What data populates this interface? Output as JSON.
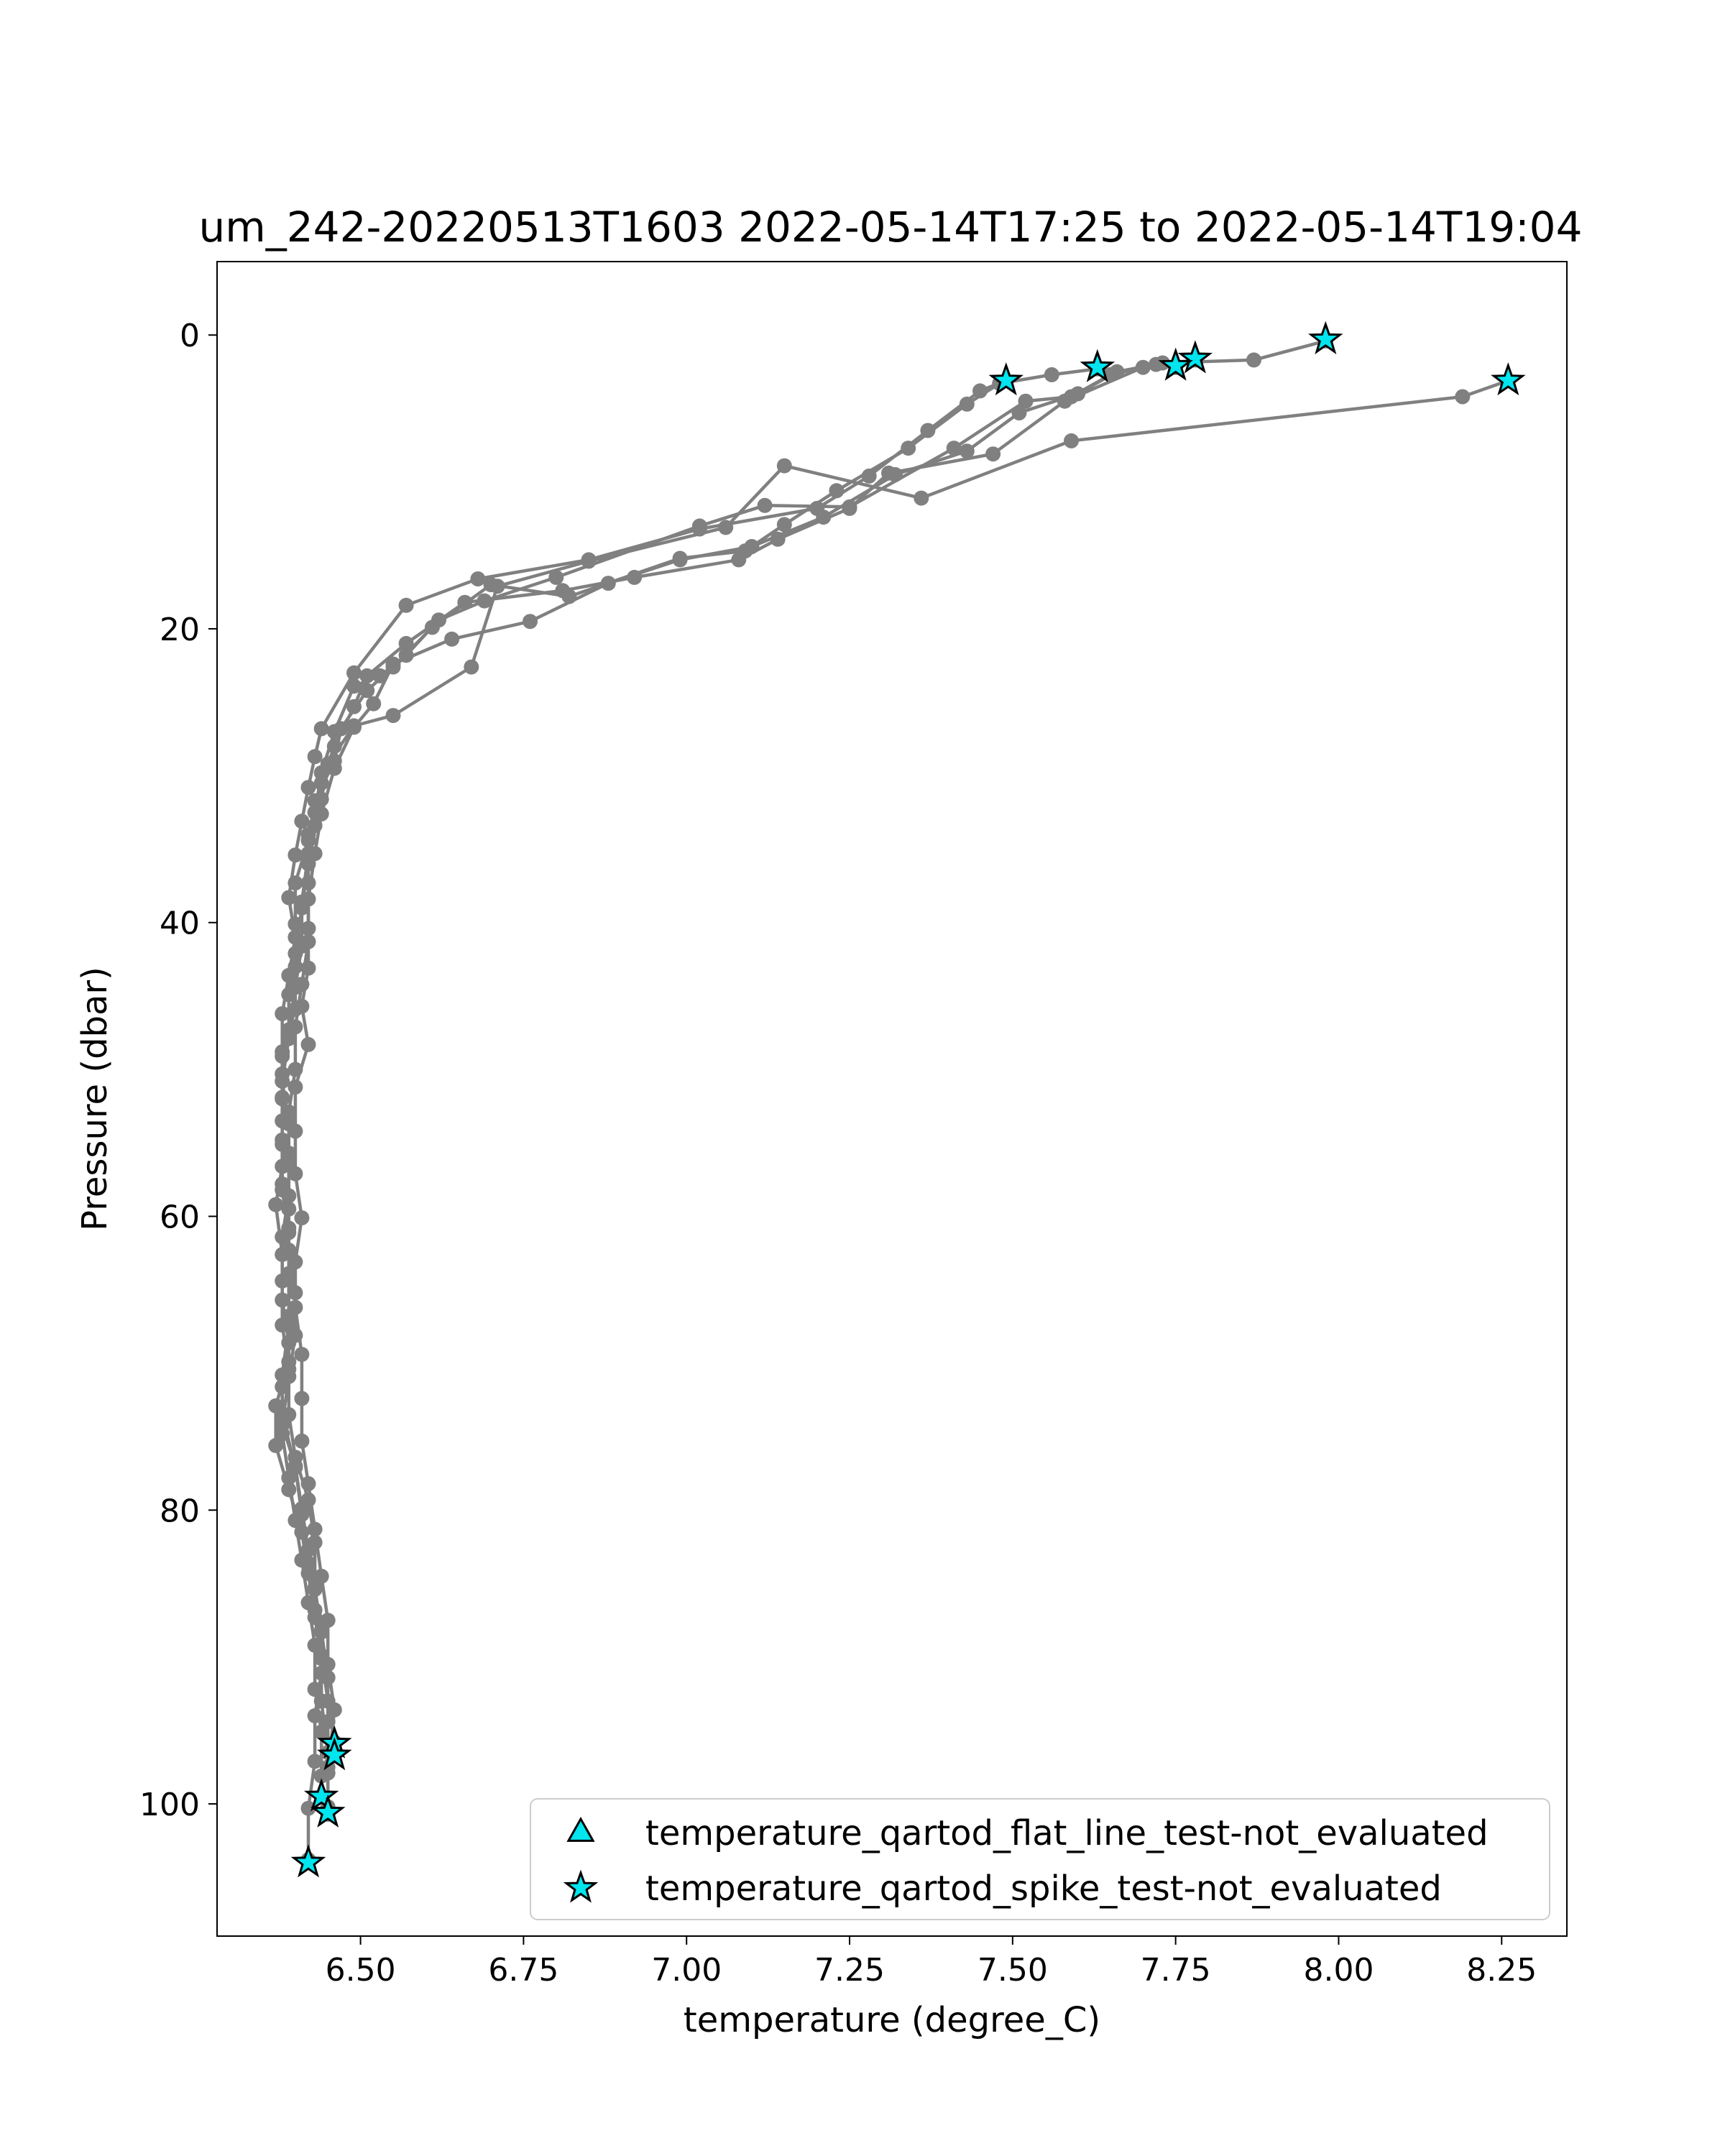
{
  "chart_data": {
    "type": "line",
    "title": "um_242-20220513T1603 2022-05-14T17:25 to 2022-05-14T19:04",
    "xlabel": "temperature (degree_C)",
    "ylabel": "Pressure (dbar)",
    "xlim": [
      6.28,
      8.35
    ],
    "ylim": [
      109,
      -5
    ],
    "y_inverted": true,
    "grid": false,
    "legend_position": "lower-right",
    "x_ticks": [
      6.5,
      6.75,
      7.0,
      7.25,
      7.5,
      7.75,
      8.0,
      8.25
    ],
    "x_tick_labels": [
      "6.50",
      "6.75",
      "7.00",
      "7.25",
      "7.50",
      "7.75",
      "8.00",
      "8.25"
    ],
    "y_ticks": [
      0,
      20,
      40,
      60,
      80,
      100
    ],
    "y_tick_labels": [
      "0",
      "20",
      "40",
      "60",
      "80",
      "100"
    ],
    "colors": {
      "profile": "#808080",
      "flag_fill": "#00e5ee",
      "flag_edge": "#000000"
    },
    "legend": [
      {
        "label": "temperature_qartod_flat_line_test-not_evaluated",
        "marker": "triangle"
      },
      {
        "label": "temperature_qartod_spike_test-not_evaluated",
        "marker": "star"
      }
    ],
    "series": [
      {
        "color": "#808080",
        "marker": "circle",
        "points": [
          [
            7.49,
            3.1
          ],
          [
            7.45,
            3.8
          ],
          [
            7.37,
            6.5
          ],
          [
            7.28,
            9.6
          ],
          [
            7.2,
            11.8
          ],
          [
            7.02,
            13.2
          ],
          [
            6.85,
            15.3
          ],
          [
            6.68,
            16.6
          ],
          [
            6.57,
            18.4
          ],
          [
            6.49,
            23.0
          ],
          [
            6.44,
            26.8
          ],
          [
            6.43,
            28.7
          ],
          [
            6.42,
            30.8
          ],
          [
            6.41,
            33.1
          ],
          [
            6.4,
            35.4
          ],
          [
            6.39,
            38.3
          ],
          [
            6.4,
            41.0
          ],
          [
            6.39,
            43.6
          ],
          [
            6.38,
            46.2
          ],
          [
            6.38,
            49.1
          ],
          [
            6.38,
            52.0
          ],
          [
            6.38,
            55.1
          ],
          [
            6.38,
            58.2
          ],
          [
            6.39,
            61.1
          ],
          [
            6.39,
            64.3
          ],
          [
            6.39,
            67.4
          ],
          [
            6.38,
            70.8
          ],
          [
            6.38,
            73.5
          ],
          [
            6.4,
            77.1
          ],
          [
            6.41,
            80.3
          ],
          [
            6.42,
            83.6
          ],
          [
            6.43,
            86.8
          ],
          [
            6.44,
            89.9
          ],
          [
            6.45,
            93.0
          ],
          [
            6.46,
            95.8
          ]
        ]
      },
      {
        "color": "#808080",
        "marker": "circle",
        "points": [
          [
            7.63,
            2.3
          ],
          [
            7.56,
            2.7
          ],
          [
            7.48,
            3.3
          ],
          [
            7.43,
            4.7
          ],
          [
            7.34,
            7.7
          ],
          [
            7.23,
            10.6
          ],
          [
            7.15,
            12.9
          ],
          [
            7.09,
            14.7
          ],
          [
            6.99,
            15.2
          ],
          [
            6.82,
            17.8
          ],
          [
            6.7,
            17.0
          ],
          [
            6.61,
            19.9
          ],
          [
            6.55,
            22.6
          ],
          [
            6.51,
            24.2
          ],
          [
            6.47,
            26.8
          ],
          [
            6.46,
            29.0
          ],
          [
            6.43,
            31.7
          ],
          [
            6.42,
            34.4
          ],
          [
            6.4,
            37.3
          ],
          [
            6.4,
            40.1
          ],
          [
            6.4,
            43.0
          ],
          [
            6.4,
            45.9
          ],
          [
            6.38,
            48.8
          ],
          [
            6.38,
            51.9
          ],
          [
            6.38,
            54.8
          ],
          [
            6.38,
            57.8
          ],
          [
            6.39,
            60.8
          ],
          [
            6.39,
            63.9
          ],
          [
            6.39,
            66.8
          ],
          [
            6.39,
            69.9
          ],
          [
            6.37,
            72.9
          ],
          [
            6.37,
            75.6
          ],
          [
            6.39,
            78.6
          ],
          [
            6.41,
            81.5
          ],
          [
            6.42,
            84.3
          ],
          [
            6.43,
            87.3
          ],
          [
            6.44,
            90.1
          ],
          [
            6.44,
            93.0
          ],
          [
            6.45,
            96.5
          ]
        ]
      },
      {
        "color": "#808080",
        "marker": "circle",
        "points": [
          [
            7.75,
            2.2
          ],
          [
            7.72,
            2.0
          ],
          [
            7.65,
            2.7
          ],
          [
            7.59,
            4.2
          ],
          [
            7.52,
            4.5
          ],
          [
            7.41,
            7.7
          ],
          [
            7.25,
            11.7
          ],
          [
            7.12,
            11.6
          ],
          [
            7.02,
            13.0
          ],
          [
            6.8,
            16.5
          ],
          [
            6.69,
            18.1
          ],
          [
            6.62,
            19.4
          ],
          [
            6.57,
            21.8
          ],
          [
            6.53,
            23.2
          ],
          [
            6.49,
            23.9
          ],
          [
            6.46,
            27.0
          ],
          [
            6.44,
            29.8
          ],
          [
            6.43,
            32.5
          ],
          [
            6.42,
            35.3
          ],
          [
            6.41,
            38.6
          ],
          [
            6.41,
            41.6
          ],
          [
            6.4,
            44.4
          ],
          [
            6.39,
            47.3
          ],
          [
            6.38,
            50.3
          ],
          [
            6.38,
            53.5
          ],
          [
            6.38,
            56.6
          ],
          [
            6.37,
            59.2
          ],
          [
            6.38,
            62.6
          ],
          [
            6.38,
            65.7
          ],
          [
            6.39,
            68.6
          ],
          [
            6.38,
            71.6
          ],
          [
            6.38,
            74.8
          ],
          [
            6.39,
            77.8
          ],
          [
            6.4,
            80.7
          ],
          [
            6.41,
            83.4
          ],
          [
            6.42,
            86.3
          ],
          [
            6.43,
            89.2
          ],
          [
            6.43,
            92.2
          ],
          [
            6.44,
            95.1
          ],
          [
            6.44,
            98.1
          ],
          [
            6.44,
            99.5
          ]
        ]
      },
      {
        "color": "#808080",
        "marker": "circle",
        "points": [
          [
            7.78,
            1.7
          ],
          [
            7.7,
            2.2
          ],
          [
            7.58,
            4.5
          ],
          [
            7.47,
            8.1
          ],
          [
            7.31,
            9.4
          ],
          [
            7.25,
            11.8
          ],
          [
            7.14,
            13.9
          ],
          [
            7.08,
            15.3
          ],
          [
            6.92,
            16.5
          ],
          [
            6.81,
            17.4
          ],
          [
            6.66,
            18.2
          ],
          [
            6.57,
            21.0
          ],
          [
            6.51,
            23.2
          ],
          [
            6.49,
            25.3
          ],
          [
            6.46,
            28.0
          ],
          [
            6.44,
            30.5
          ],
          [
            6.43,
            33.4
          ],
          [
            6.42,
            36.0
          ],
          [
            6.41,
            39.0
          ],
          [
            6.4,
            42.1
          ],
          [
            6.39,
            44.9
          ],
          [
            6.39,
            47.9
          ],
          [
            6.38,
            50.8
          ],
          [
            6.39,
            53.7
          ],
          [
            6.39,
            56.5
          ],
          [
            6.39,
            59.5
          ],
          [
            6.39,
            62.3
          ],
          [
            6.4,
            65.2
          ],
          [
            6.4,
            68.1
          ],
          [
            6.39,
            70.9
          ],
          [
            6.38,
            74.2
          ],
          [
            6.4,
            77.0
          ],
          [
            6.41,
            79.9
          ],
          [
            6.42,
            82.7
          ],
          [
            6.43,
            85.4
          ],
          [
            6.44,
            88.2
          ],
          [
            6.45,
            91.4
          ],
          [
            6.45,
            94.4
          ],
          [
            6.45,
            97.5
          ],
          [
            6.45,
            100.7
          ]
        ]
      },
      {
        "color": "#808080",
        "marker": "circle",
        "points": [
          [
            7.98,
            0.4
          ],
          [
            7.87,
            1.7
          ],
          [
            7.73,
            1.9
          ],
          [
            7.66,
            2.5
          ],
          [
            7.6,
            4.0
          ],
          [
            7.51,
            5.3
          ],
          [
            7.43,
            7.9
          ],
          [
            7.32,
            9.5
          ],
          [
            7.21,
            12.4
          ],
          [
            7.1,
            14.4
          ],
          [
            6.99,
            15.3
          ],
          [
            6.88,
            16.9
          ],
          [
            6.76,
            19.5
          ],
          [
            6.64,
            20.7
          ],
          [
            6.55,
            22.4
          ],
          [
            6.52,
            25.1
          ],
          [
            6.49,
            26.7
          ],
          [
            6.46,
            29.5
          ],
          [
            6.44,
            32.6
          ],
          [
            6.43,
            35.3
          ],
          [
            6.42,
            38.4
          ],
          [
            6.42,
            41.3
          ],
          [
            6.41,
            44.2
          ],
          [
            6.4,
            47.1
          ],
          [
            6.4,
            50.0
          ],
          [
            6.39,
            52.9
          ],
          [
            6.39,
            55.7
          ],
          [
            6.39,
            58.6
          ],
          [
            6.38,
            61.4
          ],
          [
            6.38,
            64.4
          ],
          [
            6.38,
            67.4
          ],
          [
            6.39,
            70.4
          ],
          [
            6.39,
            73.5
          ],
          [
            6.4,
            76.4
          ],
          [
            6.42,
            79.3
          ],
          [
            6.43,
            82.2
          ],
          [
            6.43,
            85.3
          ],
          [
            6.44,
            88.3
          ],
          [
            6.44,
            91.1
          ],
          [
            6.43,
            94.0
          ],
          [
            6.43,
            97.1
          ],
          [
            6.42,
            100.3
          ],
          [
            6.42,
            103.8
          ]
        ]
      },
      {
        "color": "#808080",
        "marker": "circle",
        "points": [
          [
            8.26,
            3.1
          ],
          [
            8.19,
            4.2
          ],
          [
            7.59,
            7.2
          ],
          [
            7.36,
            11.1
          ],
          [
            7.15,
            8.9
          ],
          [
            7.06,
            13.1
          ],
          [
            6.85,
            15.4
          ],
          [
            6.71,
            17.1
          ],
          [
            6.67,
            22.6
          ],
          [
            6.55,
            25.9
          ],
          [
            6.49,
            26.6
          ],
          [
            6.45,
            29.2
          ],
          [
            6.44,
            31.6
          ],
          [
            6.42,
            34.0
          ],
          [
            6.42,
            37.3
          ],
          [
            6.42,
            40.4
          ],
          [
            6.42,
            43.1
          ],
          [
            6.41,
            45.7
          ],
          [
            6.42,
            48.3
          ],
          [
            6.4,
            51.2
          ],
          [
            6.4,
            54.2
          ],
          [
            6.4,
            57.1
          ],
          [
            6.41,
            60.1
          ],
          [
            6.4,
            63.1
          ],
          [
            6.4,
            66.2
          ],
          [
            6.41,
            69.4
          ],
          [
            6.41,
            72.4
          ],
          [
            6.41,
            75.3
          ],
          [
            6.42,
            78.2
          ],
          [
            6.43,
            81.3
          ],
          [
            6.44,
            84.5
          ],
          [
            6.45,
            87.5
          ],
          [
            6.45,
            90.5
          ],
          [
            6.46,
            93.6
          ],
          [
            6.45,
            97.9
          ],
          [
            6.45,
            100.2
          ]
        ]
      }
    ],
    "flags": {
      "flat_line_test": {
        "marker": "triangle",
        "points": []
      },
      "spike_test": {
        "marker": "star",
        "points": [
          [
            7.98,
            0.3
          ],
          [
            7.78,
            1.6
          ],
          [
            7.75,
            2.1
          ],
          [
            7.63,
            2.2
          ],
          [
            7.49,
            3.1
          ],
          [
            8.26,
            3.1
          ],
          [
            6.46,
            95.9
          ],
          [
            6.46,
            96.7
          ],
          [
            6.44,
            99.5
          ],
          [
            6.45,
            100.6
          ],
          [
            6.42,
            104.0
          ]
        ]
      }
    }
  }
}
